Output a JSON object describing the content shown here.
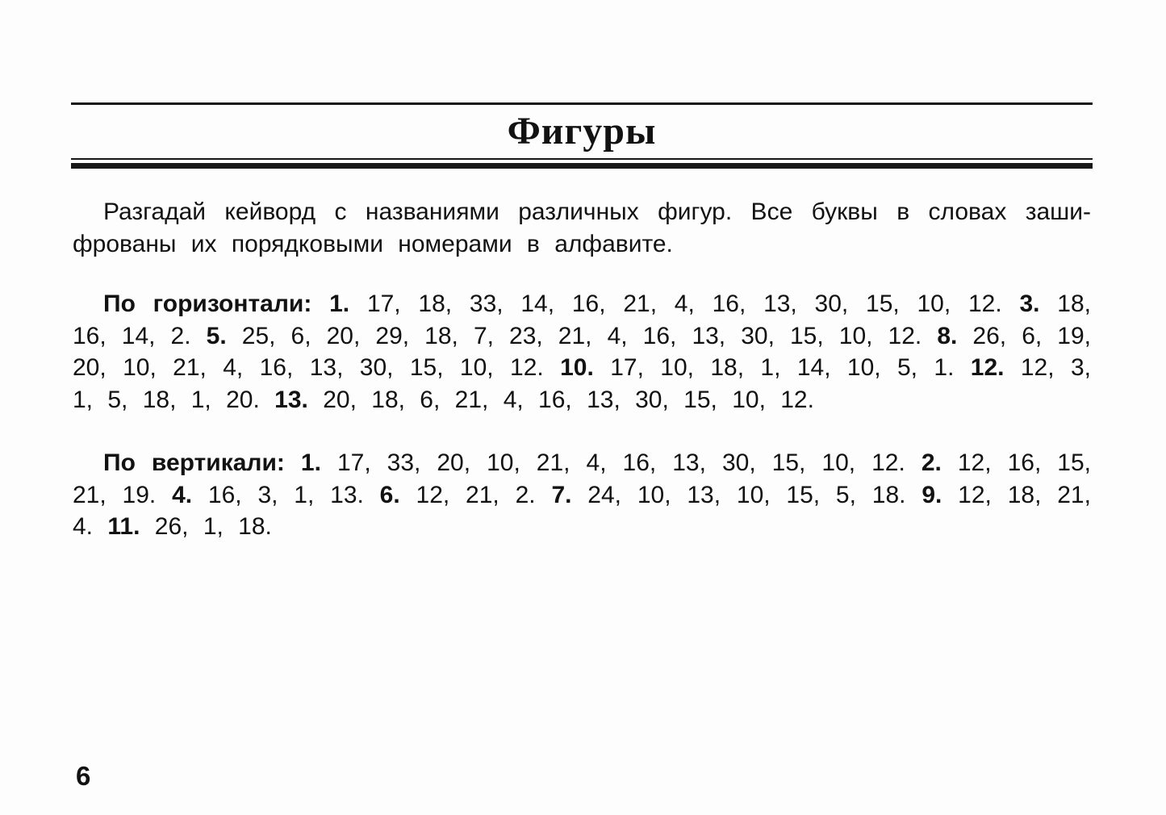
{
  "page": {
    "title": "Фигуры",
    "page_number": "6"
  },
  "intro": {
    "text": "Разгадай кейворд с названиями различных фигур. Все буквы в словах заши-фрованы их порядковыми номерами в алфавите."
  },
  "across": {
    "label": "По горизонтали:",
    "clues": [
      {
        "num": "1.",
        "values": "17, 18, 33, 14, 16, 21, 4, 16, 13, 30, 15, 10, 12."
      },
      {
        "num": "3.",
        "values": "18, 16, 14, 2."
      },
      {
        "num": "5.",
        "values": "25, 6, 20, 29, 18, 7, 23, 21, 4, 16, 13, 30, 15, 10, 12."
      },
      {
        "num": "8.",
        "values": "26, 6, 19, 20, 10, 21, 4, 16, 13, 30, 15, 10, 12."
      },
      {
        "num": "10.",
        "values": "17, 10, 18, 1, 14, 10, 5, 1."
      },
      {
        "num": "12.",
        "values": "12, 3, 1, 5, 18, 1, 20."
      },
      {
        "num": "13.",
        "values": "20, 18, 6, 21, 4, 16, 13, 30, 15, 10, 12."
      }
    ]
  },
  "down": {
    "label": "По вертикали:",
    "clues": [
      {
        "num": "1.",
        "values": "17, 33, 20, 10, 21, 4, 16, 13, 30, 15, 10, 12."
      },
      {
        "num": "2.",
        "values": "12, 16, 15, 21, 19."
      },
      {
        "num": "4.",
        "values": "16, 3, 1, 13."
      },
      {
        "num": "6.",
        "values": "12, 21, 2."
      },
      {
        "num": "7.",
        "values": "24, 10, 13, 10, 15, 5, 18."
      },
      {
        "num": "9.",
        "values": "12, 18, 21, 4."
      },
      {
        "num": "11.",
        "values": "26, 1, 18."
      }
    ]
  }
}
